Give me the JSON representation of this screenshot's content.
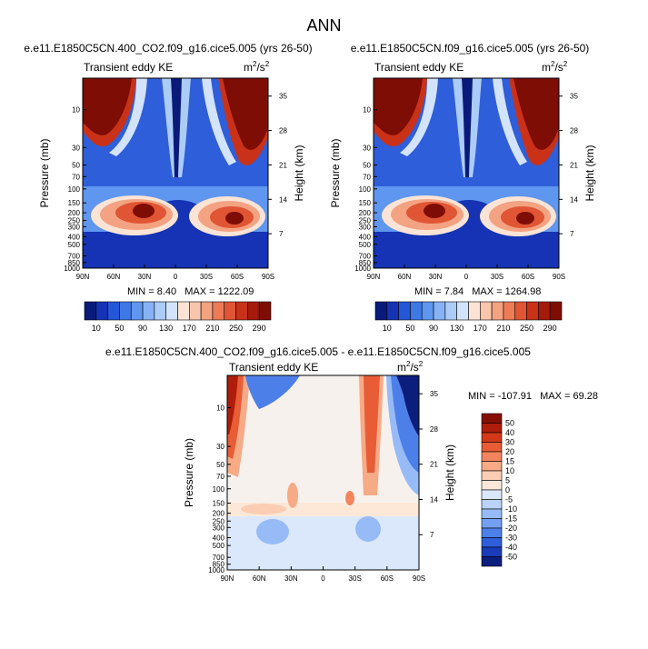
{
  "figure_title": "ANN",
  "panels": [
    {
      "id": "p1",
      "case": "e.e11.E1850C5CN.400_CO2.f09_g16.cice5.005 (yrs 26-50)",
      "variable": "Transient eddy KE",
      "units_base": "m",
      "units_exp1": "2",
      "units_mid": "/s",
      "units_exp2": "2",
      "min_label": "MIN =",
      "min": "8.40",
      "max_label": "MAX =",
      "max": "1222.09"
    },
    {
      "id": "p2",
      "case": "e.e11.E1850C5CN.f09_g16.cice5.005 (yrs 26-50)",
      "variable": "Transient eddy KE",
      "units_base": "m",
      "units_exp1": "2",
      "units_mid": "/s",
      "units_exp2": "2",
      "min_label": "MIN =",
      "min": "7.84",
      "max_label": "MAX =",
      "max": "1264.98"
    },
    {
      "id": "p3",
      "case": "e.e11.E1850C5CN.400_CO2.f09_g16.cice5.005 - e.e11.E1850C5CN.f09_g16.cice5.005",
      "variable": "Transient eddy KE",
      "units_base": "m",
      "units_exp1": "2",
      "units_mid": "/s",
      "units_exp2": "2",
      "min_label": "MIN =",
      "min": "-107.91",
      "max_label": "MAX =",
      "max": "69.28"
    }
  ],
  "colorbar_main": {
    "colors": [
      "#0a1a7a",
      "#1533b4",
      "#2457d8",
      "#3d78e6",
      "#5f96ef",
      "#86b3f5",
      "#acccf8",
      "#d3e3fb",
      "#fbe4d5",
      "#f8c6ad",
      "#f3a282",
      "#ec7b56",
      "#e05533",
      "#c93218",
      "#a51a0b",
      "#7e0d05"
    ],
    "labels": [
      "10",
      "50",
      "90",
      "130",
      "170",
      "210",
      "250",
      "290"
    ]
  },
  "colorbar_diff": {
    "colors": [
      "#0b1e7c",
      "#1a3cb8",
      "#2e5ed9",
      "#4d7fe8",
      "#739ff1",
      "#97bbf6",
      "#b9d3fa",
      "#dbe8fc",
      "#fde8d8",
      "#fbcdb2",
      "#f7aa86",
      "#f2855d",
      "#e85c36",
      "#d3381a",
      "#ae1d0b",
      "#860f05"
    ],
    "labels": [
      "50",
      "40",
      "30",
      "20",
      "15",
      "10",
      "5",
      "0",
      "-5",
      "-10",
      "-15",
      "-20",
      "-30",
      "-40",
      "-50"
    ]
  },
  "chart_data": [
    {
      "type": "heatmap",
      "title": "e.e11.E1850C5CN.400_CO2.f09_g16.cice5.005 (yrs 26-50)",
      "subtitle": "Transient eddy KE",
      "xlabel": "",
      "ylabel": "Pressure (mb)",
      "ylabel_right": "Height (km)",
      "x_ticks": [
        "90N",
        "60N",
        "30N",
        "0",
        "30S",
        "60S",
        "90S"
      ],
      "x_values": [
        90,
        60,
        30,
        0,
        -30,
        -60,
        -90
      ],
      "y_ticks": [
        "10",
        "30",
        "50",
        "70",
        "100",
        "150",
        "200",
        "250",
        "300",
        "400",
        "500",
        "700",
        "850",
        "1000"
      ],
      "y_values": [
        10,
        30,
        50,
        70,
        100,
        150,
        200,
        250,
        300,
        400,
        500,
        700,
        850,
        1000
      ],
      "y_ticks_right": [
        "35",
        "28",
        "21",
        "14",
        "7"
      ],
      "ylim": [
        1000,
        4
      ],
      "units": "m2/s2",
      "min": 8.4,
      "max": 1222.09,
      "levels": [
        10,
        30,
        50,
        70,
        90,
        110,
        130,
        150,
        170,
        190,
        210,
        230,
        250,
        270,
        290
      ],
      "features": [
        {
          "label": "stratospheric polar maximum NH",
          "lat": 75,
          "p": 5,
          "value": 300
        },
        {
          "label": "stratospheric polar maximum SH",
          "lat": -75,
          "p": 5,
          "value": 300
        },
        {
          "label": "NH jet maximum",
          "lat": 33,
          "p": 200,
          "value": 290
        },
        {
          "label": "SH jet maximum",
          "lat": -50,
          "p": 250,
          "value": 290
        }
      ]
    },
    {
      "type": "heatmap",
      "title": "e.e11.E1850C5CN.f09_g16.cice5.005 (yrs 26-50)",
      "subtitle": "Transient eddy KE",
      "xlabel": "",
      "ylabel": "Pressure (mb)",
      "ylabel_right": "Height (km)",
      "x_ticks": [
        "90N",
        "60N",
        "30N",
        "0",
        "30S",
        "60S",
        "90S"
      ],
      "x_values": [
        90,
        60,
        30,
        0,
        -30,
        -60,
        -90
      ],
      "y_ticks": [
        "10",
        "30",
        "50",
        "70",
        "100",
        "150",
        "200",
        "250",
        "300",
        "400",
        "500",
        "700",
        "850",
        "1000"
      ],
      "y_values": [
        10,
        30,
        50,
        70,
        100,
        150,
        200,
        250,
        300,
        400,
        500,
        700,
        850,
        1000
      ],
      "y_ticks_right": [
        "35",
        "28",
        "21",
        "14",
        "7"
      ],
      "ylim": [
        1000,
        4
      ],
      "units": "m2/s2",
      "min": 7.84,
      "max": 1264.98,
      "levels": [
        10,
        30,
        50,
        70,
        90,
        110,
        130,
        150,
        170,
        190,
        210,
        230,
        250,
        270,
        290
      ],
      "features": [
        {
          "label": "stratospheric polar maximum NH",
          "lat": 75,
          "p": 5,
          "value": 300
        },
        {
          "label": "stratospheric polar maximum SH",
          "lat": -75,
          "p": 5,
          "value": 300
        },
        {
          "label": "NH jet maximum",
          "lat": 33,
          "p": 200,
          "value": 290
        },
        {
          "label": "SH jet maximum",
          "lat": -50,
          "p": 250,
          "value": 290
        }
      ]
    },
    {
      "type": "heatmap",
      "title": "e.e11.E1850C5CN.400_CO2.f09_g16.cice5.005 - e.e11.E1850C5CN.f09_g16.cice5.005",
      "subtitle": "Transient eddy KE",
      "xlabel": "",
      "ylabel": "Pressure (mb)",
      "ylabel_right": "Height (km)",
      "x_ticks": [
        "90N",
        "60N",
        "30N",
        "0",
        "30S",
        "60S",
        "90S"
      ],
      "x_values": [
        90,
        60,
        30,
        0,
        -30,
        -60,
        -90
      ],
      "y_ticks": [
        "10",
        "30",
        "50",
        "70",
        "100",
        "150",
        "200",
        "250",
        "300",
        "400",
        "500",
        "700",
        "850",
        "1000"
      ],
      "y_values": [
        10,
        30,
        50,
        70,
        100,
        150,
        200,
        250,
        300,
        400,
        500,
        700,
        850,
        1000
      ],
      "y_ticks_right": [
        "35",
        "28",
        "21",
        "14",
        "7"
      ],
      "ylim": [
        1000,
        4
      ],
      "units": "m2/s2",
      "min": -107.91,
      "max": 69.28,
      "levels": [
        -50,
        -40,
        -30,
        -20,
        -15,
        -10,
        -5,
        0,
        5,
        10,
        15,
        20,
        30,
        40,
        50
      ],
      "features": [
        {
          "label": "NH polar stratosphere increase",
          "lat": 85,
          "p": 30,
          "value": 50
        },
        {
          "label": "SH midlatitude stratosphere increase",
          "lat": -45,
          "p": 20,
          "value": 50
        },
        {
          "label": "SH polar stratosphere decrease",
          "lat": -75,
          "p": 20,
          "value": -50
        },
        {
          "label": "NH lower troposphere decrease",
          "lat": 50,
          "p": 450,
          "value": -15
        },
        {
          "label": "SH lower troposphere decrease",
          "lat": -40,
          "p": 450,
          "value": -15
        }
      ]
    }
  ]
}
